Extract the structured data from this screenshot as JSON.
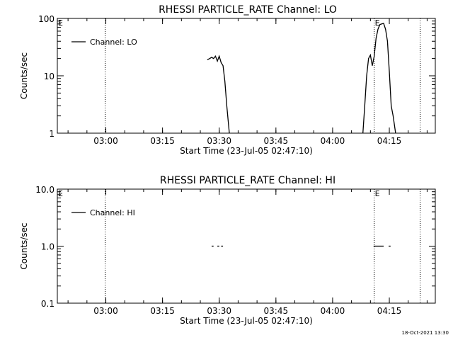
{
  "footer": {
    "timestamp": "18-Oct-2021 13:30"
  },
  "chart_data": [
    {
      "type": "line",
      "title": "RHESSI PARTICLE_RATE Channel: LO",
      "xlabel": "Start Time (23-Jul-05 02:47:10)",
      "ylabel": "Counts/sec",
      "yscale": "log",
      "ylim": [
        1,
        100
      ],
      "xlim": [
        "02:47:10",
        "04:27:10"
      ],
      "xticks": [
        "03:00",
        "03:15",
        "03:30",
        "03:45",
        "04:00",
        "04:15"
      ],
      "yticks": [
        "1",
        "10",
        "100"
      ],
      "legend": {
        "label": "Channel: LO",
        "position": "top-left"
      },
      "markers": [
        {
          "label": "E",
          "time": "02:47:10"
        },
        {
          "label": "",
          "time": "02:59:50"
        },
        {
          "label": "E",
          "time": "04:11:00"
        },
        {
          "label": "",
          "time": "04:23:10"
        }
      ],
      "series": [
        {
          "name": "Channel: LO",
          "segments": [
            {
              "x": [
                "03:26:50",
                "03:27:30",
                "03:28:00",
                "03:28:30",
                "03:29:00",
                "03:29:30",
                "03:30:00",
                "03:30:30",
                "03:31:00",
                "03:31:30",
                "03:32:00",
                "03:32:40"
              ],
              "y": [
                19,
                20,
                21,
                20,
                22,
                18,
                22,
                17,
                15,
                8,
                3,
                1
              ]
            },
            {
              "x": [
                "04:08:00",
                "04:08:30",
                "04:09:00",
                "04:09:30",
                "04:10:00",
                "04:10:30",
                "04:11:00",
                "04:11:30",
                "04:12:00",
                "04:12:30",
                "04:13:00",
                "04:13:30",
                "04:14:00",
                "04:14:30",
                "04:15:00",
                "04:15:30",
                "04:16:00",
                "04:16:40"
              ],
              "y": [
                1,
                3,
                10,
                20,
                23,
                15,
                22,
                45,
                65,
                78,
                80,
                82,
                65,
                40,
                12,
                3,
                2,
                1
              ]
            }
          ]
        }
      ]
    },
    {
      "type": "line",
      "title": "RHESSI PARTICLE_RATE Channel: HI",
      "xlabel": "Start Time (23-Jul-05 02:47:10)",
      "ylabel": "Counts/sec",
      "yscale": "log",
      "ylim": [
        0.1,
        10
      ],
      "xlim": [
        "02:47:10",
        "04:27:10"
      ],
      "xticks": [
        "03:00",
        "03:15",
        "03:30",
        "03:45",
        "04:00",
        "04:15"
      ],
      "yticks": [
        "0.1",
        "1.0",
        "10.0"
      ],
      "legend": {
        "label": "Channel: HI",
        "position": "top-left"
      },
      "markers": [
        {
          "label": "E",
          "time": "02:47:10"
        },
        {
          "label": "",
          "time": "02:59:50"
        },
        {
          "label": "E",
          "time": "04:11:00"
        },
        {
          "label": "",
          "time": "04:23:10"
        }
      ],
      "series": [
        {
          "name": "Channel: HI",
          "segments": [
            {
              "x": [
                "03:28:00",
                "03:28:30"
              ],
              "y": [
                1,
                1
              ]
            },
            {
              "x": [
                "03:29:30",
                "03:30:00"
              ],
              "y": [
                1,
                1
              ]
            },
            {
              "x": [
                "03:30:30",
                "03:31:00"
              ],
              "y": [
                1,
                1
              ]
            },
            {
              "x": [
                "04:10:50",
                "04:13:30"
              ],
              "y": [
                1,
                1
              ]
            },
            {
              "x": [
                "04:14:50",
                "04:15:20"
              ],
              "y": [
                1,
                1
              ]
            }
          ]
        }
      ]
    }
  ]
}
